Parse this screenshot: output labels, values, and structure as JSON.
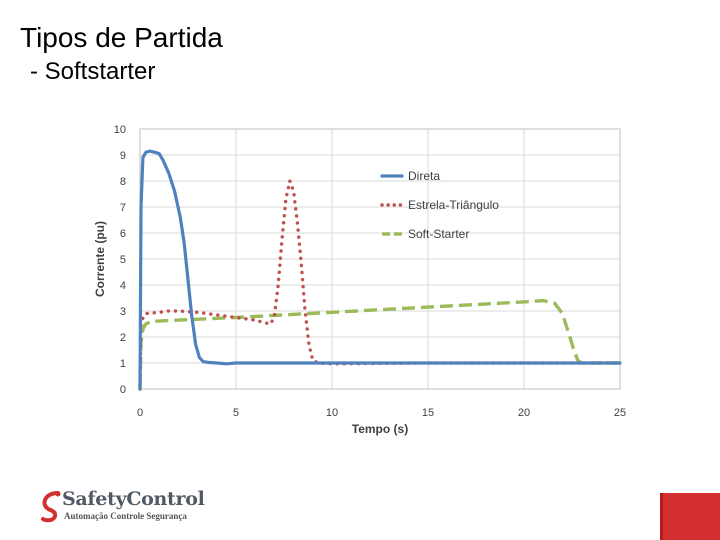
{
  "slide": {
    "title": "Tipos de Partida",
    "subtitle": "- Softstarter"
  },
  "logo": {
    "word1": "Safety",
    "word2": "Control",
    "tagline": "Automação Controle Segurança",
    "brand_red": "#d32f2f",
    "brand_gray": "#505a64"
  },
  "accent_color": "#d32f2f",
  "chart_data": {
    "type": "line",
    "xlabel": "Tempo (s)",
    "ylabel": "Corrente (pu)",
    "xlim": [
      0,
      25
    ],
    "ylim": [
      0,
      10
    ],
    "xticks": [
      0,
      5,
      10,
      15,
      20,
      25
    ],
    "yticks": [
      0,
      1,
      2,
      3,
      4,
      5,
      6,
      7,
      8,
      9,
      10
    ],
    "grid": true,
    "legend_position": "top-right",
    "series": [
      {
        "name": "Direta",
        "color": "#4f81bd",
        "style": "solid",
        "points": [
          [
            0,
            0
          ],
          [
            0.05,
            7
          ],
          [
            0.15,
            8.9
          ],
          [
            0.3,
            9.1
          ],
          [
            0.5,
            9.15
          ],
          [
            0.8,
            9.1
          ],
          [
            1,
            9.05
          ],
          [
            1.2,
            8.8
          ],
          [
            1.5,
            8.3
          ],
          [
            1.8,
            7.6
          ],
          [
            2.1,
            6.6
          ],
          [
            2.3,
            5.6
          ],
          [
            2.5,
            4.2
          ],
          [
            2.7,
            2.8
          ],
          [
            2.9,
            1.7
          ],
          [
            3.1,
            1.2
          ],
          [
            3.3,
            1.05
          ],
          [
            3.6,
            1.02
          ],
          [
            4,
            1
          ],
          [
            4.5,
            0.97
          ],
          [
            5,
            1
          ],
          [
            8,
            1
          ],
          [
            10,
            1
          ],
          [
            15,
            1
          ],
          [
            20,
            1
          ],
          [
            25,
            1
          ]
        ]
      },
      {
        "name": "Estrela-Triângulo",
        "color": "#c0504d",
        "style": "dotted",
        "points": [
          [
            0,
            0
          ],
          [
            0.05,
            2.6
          ],
          [
            0.3,
            2.9
          ],
          [
            1,
            2.95
          ],
          [
            1.5,
            3
          ],
          [
            2,
            3
          ],
          [
            3,
            2.95
          ],
          [
            4,
            2.85
          ],
          [
            5,
            2.75
          ],
          [
            6,
            2.65
          ],
          [
            6.5,
            2.55
          ],
          [
            6.8,
            2.5
          ],
          [
            7,
            2.8
          ],
          [
            7.2,
            4
          ],
          [
            7.4,
            5.8
          ],
          [
            7.6,
            7.3
          ],
          [
            7.8,
            8
          ],
          [
            8.0,
            7.6
          ],
          [
            8.2,
            6.4
          ],
          [
            8.4,
            4.8
          ],
          [
            8.6,
            3
          ],
          [
            8.8,
            1.7
          ],
          [
            9,
            1.1
          ],
          [
            9.3,
            1
          ],
          [
            10,
            0.97
          ],
          [
            15,
            1
          ],
          [
            20,
            1
          ],
          [
            25,
            1
          ]
        ]
      },
      {
        "name": "Soft-Starter",
        "color": "#9bbb59",
        "style": "dashed",
        "points": [
          [
            0,
            0
          ],
          [
            0.05,
            1.8
          ],
          [
            0.15,
            2.3
          ],
          [
            0.3,
            2.5
          ],
          [
            0.6,
            2.6
          ],
          [
            2,
            2.65
          ],
          [
            5,
            2.75
          ],
          [
            10,
            2.95
          ],
          [
            15,
            3.15
          ],
          [
            20,
            3.35
          ],
          [
            21,
            3.4
          ],
          [
            21.6,
            3.3
          ],
          [
            22,
            2.9
          ],
          [
            22.3,
            2.2
          ],
          [
            22.6,
            1.5
          ],
          [
            22.8,
            1.1
          ],
          [
            23,
            1
          ],
          [
            25,
            1
          ]
        ]
      }
    ]
  }
}
